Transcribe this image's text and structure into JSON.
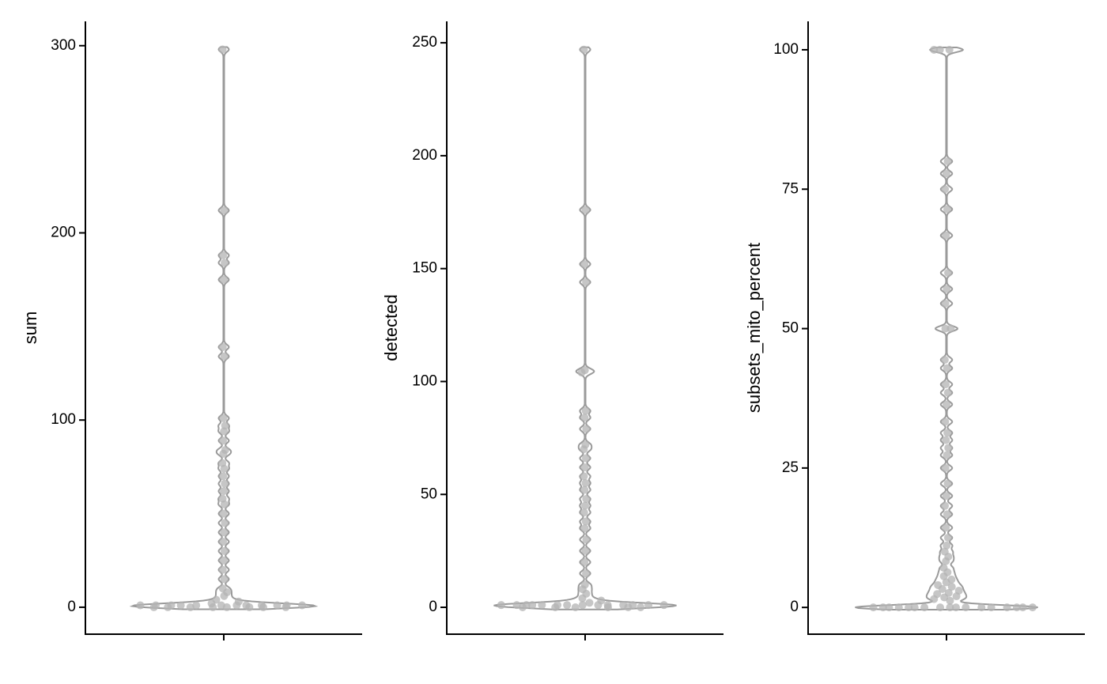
{
  "chart_data": [
    {
      "type": "violin",
      "ylabel": "sum",
      "color": "#b3b3b3",
      "ylim": [
        -14.4,
        313
      ],
      "yticks": [
        0,
        100,
        200,
        300
      ],
      "values": [
        298,
        212,
        188,
        184,
        175,
        139,
        134,
        101,
        97,
        94,
        89,
        84,
        82,
        77,
        74,
        70,
        66,
        62,
        58,
        55,
        50,
        45,
        40,
        35,
        30,
        25,
        20,
        15,
        10,
        8,
        6,
        4,
        3,
        2,
        1,
        1,
        1,
        1,
        1,
        1,
        1,
        1,
        1,
        1,
        1,
        1,
        0,
        0,
        0,
        0,
        0,
        0,
        0,
        0
      ]
    },
    {
      "type": "violin",
      "ylabel": "detected",
      "color": "#b3b3b3",
      "ylim": [
        -11.9,
        259.5
      ],
      "yticks": [
        0,
        50,
        100,
        150,
        200,
        250
      ],
      "values": [
        247,
        176,
        152,
        144,
        105,
        104,
        87,
        84,
        79,
        72,
        70,
        66,
        62,
        58,
        55,
        52,
        48,
        45,
        42,
        38,
        35,
        30,
        25,
        20,
        15,
        10,
        8,
        6,
        4,
        3,
        2,
        1,
        1,
        1,
        1,
        1,
        1,
        1,
        1,
        1,
        1,
        1,
        1,
        1,
        1,
        0,
        0,
        0,
        0,
        0,
        0
      ]
    },
    {
      "type": "violin",
      "ylabel": "subsets_mito_percent",
      "color": "#b3b3b3",
      "ylim": [
        -4.8,
        105.1
      ],
      "yticks": [
        0,
        25,
        50,
        75,
        100
      ],
      "values": [
        100,
        100,
        100,
        80,
        77.8,
        75,
        71.4,
        66.7,
        60,
        57.1,
        54.5,
        50,
        50,
        44.4,
        42.9,
        40,
        38.5,
        36.4,
        33.3,
        31.3,
        30,
        28.6,
        27.3,
        25,
        22.2,
        20,
        18.2,
        16.7,
        14.3,
        12.5,
        11.1,
        10,
        9.1,
        8.3,
        7.1,
        6.3,
        5.6,
        5,
        4.5,
        4,
        3.7,
        3.3,
        3,
        2.6,
        2.4,
        2,
        1.8,
        1.5,
        1.2,
        0,
        0,
        0,
        0,
        0,
        0,
        0,
        0,
        0,
        0,
        0,
        0,
        0,
        0,
        0,
        0,
        0
      ]
    }
  ]
}
